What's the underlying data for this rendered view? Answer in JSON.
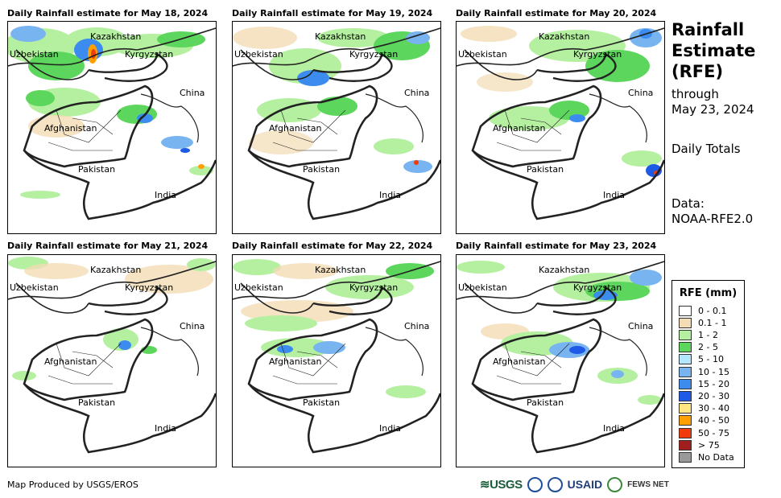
{
  "panels": [
    {
      "title": "Daily Rainfall estimate for May 18, 2024"
    },
    {
      "title": "Daily Rainfall estimate for May 19, 2024"
    },
    {
      "title": "Daily Rainfall estimate for May 20, 2024"
    },
    {
      "title": "Daily Rainfall estimate for May 21, 2024"
    },
    {
      "title": "Daily Rainfall estimate for May 22, 2024"
    },
    {
      "title": "Daily Rainfall estimate for May 23, 2024"
    }
  ],
  "map_labels": {
    "kazakhstan": "Kazakhstan",
    "uzbekistan": "Uzbekistan",
    "kyrgyzstan": "Kyrgyzstan",
    "china": "China",
    "afghanistan": "Afghanistan",
    "pakistan": "Pakistan",
    "india": "India"
  },
  "side": {
    "title_line1": "Rainfall",
    "title_line2": "Estimate",
    "title_line3": "(RFE)",
    "through_label": "through",
    "through_date": "May 23, 2024",
    "totals": "Daily Totals",
    "data_label": "Data:",
    "data_source": "NOAA-RFE2.0"
  },
  "legend": {
    "title": "RFE (mm)",
    "items": [
      {
        "label": "0 - 0.1",
        "color": "#ffffff"
      },
      {
        "label": "0.1 - 1",
        "color": "#f2dcb4"
      },
      {
        "label": "1 - 2",
        "color": "#b4f0a0"
      },
      {
        "label": "2 - 5",
        "color": "#5cd65c"
      },
      {
        "label": "5 - 10",
        "color": "#b4e6ff"
      },
      {
        "label": "10 - 15",
        "color": "#78b4f0"
      },
      {
        "label": "15 - 20",
        "color": "#3c8cf0"
      },
      {
        "label": "20 - 30",
        "color": "#1e5ae6"
      },
      {
        "label": "30 - 40",
        "color": "#ffe680"
      },
      {
        "label": "40 - 50",
        "color": "#ffa000"
      },
      {
        "label": "50 - 75",
        "color": "#f03c0a"
      },
      {
        "label": "> 75",
        "color": "#a01e1e"
      },
      {
        "label": "No Data",
        "color": "#999999"
      }
    ]
  },
  "footer": {
    "credit": "Map Produced by USGS/EROS",
    "logo_usgs": "≋USGS",
    "logo_usaid": "USAID",
    "logo_fews": "FEWS NET"
  }
}
